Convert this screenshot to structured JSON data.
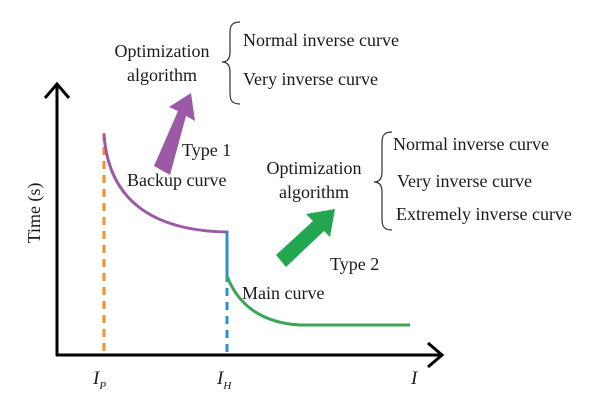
{
  "axes": {
    "y_label": "Time (s)",
    "x_label": "I",
    "ticks": {
      "ip": {
        "base": "I",
        "sub": "P"
      },
      "ih": {
        "base": "I",
        "sub": "H"
      }
    }
  },
  "curves": {
    "backup": {
      "label": "Backup curve",
      "type_label": "Type 1",
      "color": "#9b59a6"
    },
    "main": {
      "label": "Main curve",
      "type_label": "Type 2",
      "color": "#3aa655"
    },
    "step_color": "#2e8fd0",
    "ip_dash_color": "#f28a30",
    "ih_dash_color": "#2e8fd0"
  },
  "groups": {
    "type1": {
      "title_line1": "Optimization",
      "title_line2": "algorithm",
      "options": [
        "Normal inverse curve",
        "Very inverse curve"
      ]
    },
    "type2": {
      "title_line1": "Optimization",
      "title_line2": "algorithm",
      "options": [
        "Normal inverse curve",
        "Very inverse curve",
        "Extremely inverse curve"
      ]
    }
  },
  "arrows": {
    "purple": "#9b59a6",
    "green": "#22a650"
  }
}
